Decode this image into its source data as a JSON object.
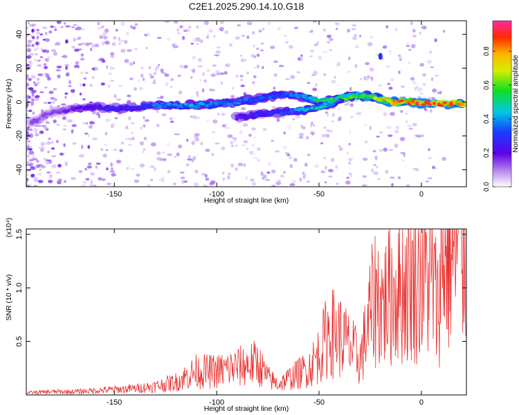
{
  "chart_data": [
    {
      "type": "heatmap",
      "title": "C2E1.2025.290.14.10.G18",
      "xlabel": "Height of straight line (km)",
      "ylabel": "Frequency (Hz)",
      "xlim": [
        -193,
        22
      ],
      "ylim": [
        -50,
        48
      ],
      "xticks": [
        -150,
        -100,
        -50,
        0
      ],
      "xtick_labels": [
        "-150",
        "-100",
        "-50",
        "0"
      ],
      "yticks": [
        -40,
        -20,
        0,
        20,
        40
      ],
      "ytick_labels": [
        "-40",
        "-20",
        "0",
        "20",
        "40"
      ],
      "colorbar": {
        "label": "Normalized spectral amplitude",
        "range": [
          0,
          0.98
        ],
        "ticks": [
          0.0,
          0.2,
          0.4,
          0.6,
          0.8
        ],
        "tick_labels": [
          "0.0",
          "0.2",
          "0.4",
          "0.6",
          "0.8"
        ]
      },
      "ridge": {
        "height_km": [
          -190,
          -180,
          -170,
          -160,
          -150,
          -140,
          -130,
          -120,
          -110,
          -100,
          -90,
          -80,
          -70,
          -60,
          -50,
          -40,
          -35,
          -30,
          -25,
          -20,
          -15,
          -10,
          -5,
          0,
          5,
          10,
          15,
          20
        ],
        "frequency_hz": [
          -12,
          -6,
          -4,
          -3,
          -4,
          -3,
          -2,
          -2,
          -2,
          -1,
          0,
          2,
          4,
          4,
          0,
          2,
          3,
          4,
          3,
          2,
          0,
          0,
          0,
          -1,
          -1,
          -1,
          -1,
          -1
        ],
        "amplitude": [
          0.15,
          0.15,
          0.2,
          0.25,
          0.3,
          0.3,
          0.38,
          0.42,
          0.45,
          0.42,
          0.4,
          0.36,
          0.35,
          0.4,
          0.55,
          0.6,
          0.62,
          0.6,
          0.6,
          0.75,
          0.85,
          0.9,
          0.88,
          0.92,
          0.95,
          0.9,
          0.92,
          0.9
        ]
      },
      "secondary_branch": {
        "height_km": [
          -90,
          -80,
          -70,
          -60,
          -50,
          -45,
          -40
        ],
        "frequency_hz": [
          -9,
          -7,
          -6,
          -5,
          -3,
          -1,
          2
        ],
        "amplitude": [
          0.25,
          0.3,
          0.32,
          0.45,
          0.5,
          0.52,
          0.55
        ]
      },
      "isolated_feature": {
        "height_km": -20,
        "frequency_hz": 27,
        "amplitude": 0.3
      }
    },
    {
      "type": "line",
      "xlabel": "Height of straight line (km)",
      "ylabel": "SNR (10 * v/v)",
      "yscale_label": "(x10⁴)",
      "xlim": [
        -193,
        22
      ],
      "ylim": [
        0,
        1.55
      ],
      "xticks": [
        -150,
        -100,
        -50,
        0
      ],
      "xtick_labels": [
        "-150",
        "-100",
        "-50",
        "0"
      ],
      "yticks": [
        0.5,
        1.0,
        1.5
      ],
      "ytick_labels": [
        "0.5",
        "1.0",
        "1.5"
      ],
      "series": [
        {
          "name": "SNR",
          "color": "#e8302e",
          "x": [
            -193,
            -180,
            -170,
            -160,
            -150,
            -140,
            -130,
            -120,
            -116,
            -112,
            -110,
            -100,
            -90,
            -80,
            -75,
            -70,
            -65,
            -60,
            -55,
            -50,
            -45,
            -40,
            -35,
            -30,
            -28,
            -25,
            -22,
            -20,
            -18,
            -15,
            -10,
            -5,
            0,
            5,
            8,
            10,
            15,
            20,
            22
          ],
          "y": [
            0.02,
            0.03,
            0.03,
            0.04,
            0.05,
            0.06,
            0.08,
            0.12,
            0.16,
            0.2,
            0.22,
            0.22,
            0.26,
            0.3,
            0.16,
            0.1,
            0.15,
            0.2,
            0.25,
            0.38,
            0.6,
            0.55,
            0.45,
            0.32,
            0.48,
            0.75,
            0.95,
            0.85,
            0.85,
            0.95,
            1.0,
            1.05,
            1.1,
            1.1,
            0.8,
            1.3,
            1.3,
            1.35,
            1.4
          ]
        }
      ]
    }
  ]
}
